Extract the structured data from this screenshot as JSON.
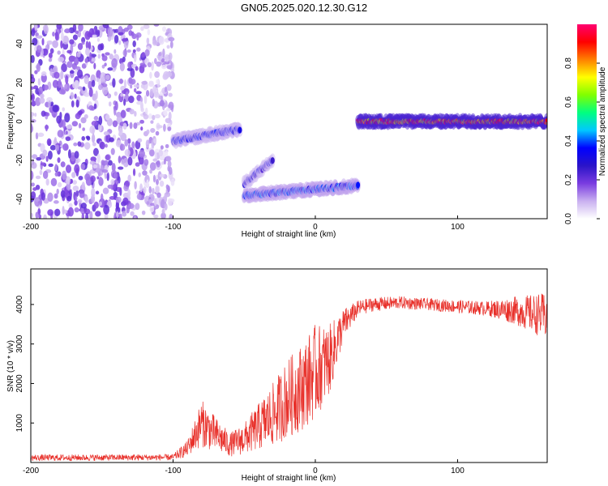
{
  "title": "GN05.2025.020.12.30.G12",
  "chart_data": [
    {
      "type": "heatmap",
      "xlabel": "Height of straight line (km)",
      "ylabel": "Frequency (Hz)",
      "xlim": [
        -200,
        163
      ],
      "ylim": [
        -50,
        50
      ],
      "x_ticks": [
        -200,
        -100,
        0,
        100
      ],
      "y_ticks": [
        -40,
        -20,
        0,
        20,
        40
      ],
      "colorbar": {
        "label": "Normalized spectral amplitude",
        "range": [
          0,
          1
        ],
        "ticks": [
          0.0,
          0.2,
          0.4,
          0.6,
          0.8
        ],
        "tick_labels": [
          "0.0",
          "0.2",
          "0.4",
          "0.6",
          "0.8"
        ],
        "colors": [
          "#ffffff",
          "#c9b0f0",
          "#7a3ce0",
          "#2a14c8",
          "#0000ff",
          "#00c8ff",
          "#00ff80",
          "#80ff00",
          "#ffff00",
          "#ff8000",
          "#ff0000",
          "#ff0070"
        ]
      },
      "features": [
        {
          "kind": "noise_field",
          "x": [
            -200,
            -100
          ],
          "y": [
            -50,
            50
          ],
          "amplitude": 0.15
        },
        {
          "kind": "band",
          "x": [
            -100,
            -53
          ],
          "y_center": [
            -10,
            -4
          ],
          "amplitude": 0.35
        },
        {
          "kind": "band",
          "x": [
            -50,
            30
          ],
          "y_center": [
            -38,
            -33
          ],
          "amplitude": 0.4
        },
        {
          "kind": "band",
          "x": [
            -50,
            -30
          ],
          "y_center": [
            -32,
            -20
          ],
          "amplitude": 0.3
        },
        {
          "kind": "band",
          "x": [
            30,
            163
          ],
          "y_center": [
            0,
            0
          ],
          "amplitude": 0.95
        }
      ]
    },
    {
      "type": "line",
      "xlabel": "Height of straight line (km)",
      "ylabel": "SNR (10 * v/v)",
      "xlim": [
        -200,
        163
      ],
      "ylim": [
        0,
        4900
      ],
      "x_ticks": [
        -200,
        -100,
        0,
        100
      ],
      "y_ticks": [
        1000,
        2000,
        3000,
        4000
      ],
      "color": "#e8302a",
      "envelope": {
        "x": [
          -200,
          -100,
          -90,
          -80,
          -70,
          -60,
          -50,
          -40,
          -30,
          -20,
          -10,
          0,
          10,
          20,
          30,
          40,
          60,
          80,
          100,
          120,
          140,
          163
        ],
        "mean": [
          120,
          130,
          350,
          1000,
          700,
          450,
          600,
          900,
          1200,
          1600,
          1900,
          2300,
          2600,
          3500,
          3900,
          4000,
          4050,
          4000,
          3950,
          3900,
          3850,
          3700
        ],
        "spread": [
          80,
          80,
          200,
          600,
          450,
          300,
          400,
          600,
          800,
          1000,
          1100,
          1200,
          900,
          400,
          200,
          180,
          160,
          150,
          170,
          180,
          350,
          600
        ]
      }
    }
  ]
}
